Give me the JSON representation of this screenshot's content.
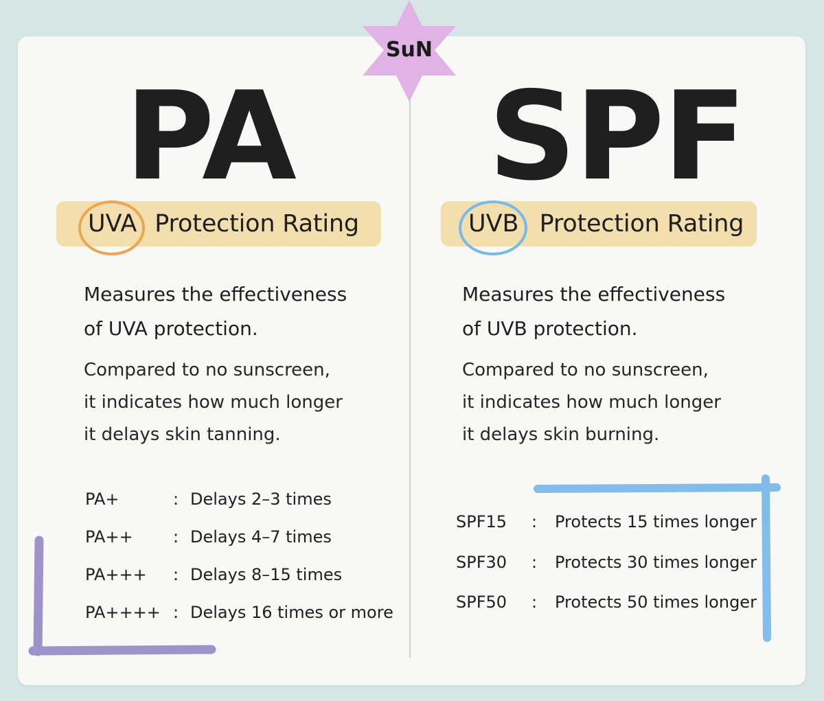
{
  "badge": {
    "text": "SuN",
    "color": "#e0b2e6"
  },
  "left": {
    "title": "PA",
    "pill": {
      "ring_word": "UVA",
      "rest": "Protection Rating",
      "ring_color": "#eea552"
    },
    "description_lines": [
      "Measures the effectiveness",
      "of UVA protection."
    ],
    "comparison_lines": [
      "Compared to no sunscreen,",
      "it indicates how much longer",
      "it delays skin tanning."
    ],
    "ratings": [
      {
        "key": "PA+",
        "desc": "Delays 2–3 times"
      },
      {
        "key": "PA++",
        "desc": "Delays 4–7 times"
      },
      {
        "key": "PA+++",
        "desc": "Delays 8–15 times"
      },
      {
        "key": "PA++++",
        "desc": "Delays 16 times or more"
      }
    ],
    "accent_color": "#8f82c2"
  },
  "right": {
    "title": "SPF",
    "pill": {
      "ring_word": "UVB",
      "rest": "Protection Rating",
      "ring_color": "#79b9e8"
    },
    "description_lines": [
      "Measures the effectiveness",
      "of UVB protection."
    ],
    "comparison_lines": [
      "Compared to no sunscreen,",
      "it indicates how much longer",
      "it delays skin burning."
    ],
    "ratings": [
      {
        "key": "SPF15",
        "desc": "Protects 15 times longer"
      },
      {
        "key": "SPF30",
        "desc": "Protects 30 times longer"
      },
      {
        "key": "SPF50",
        "desc": "Protects 50 times longer"
      }
    ],
    "accent_color": "#74b6e9"
  },
  "separator": ":",
  "colors": {
    "background": "#d5e6e4",
    "card": "#f8f8f7",
    "pill": "#f3dfae",
    "text": "#1f1f1f"
  }
}
